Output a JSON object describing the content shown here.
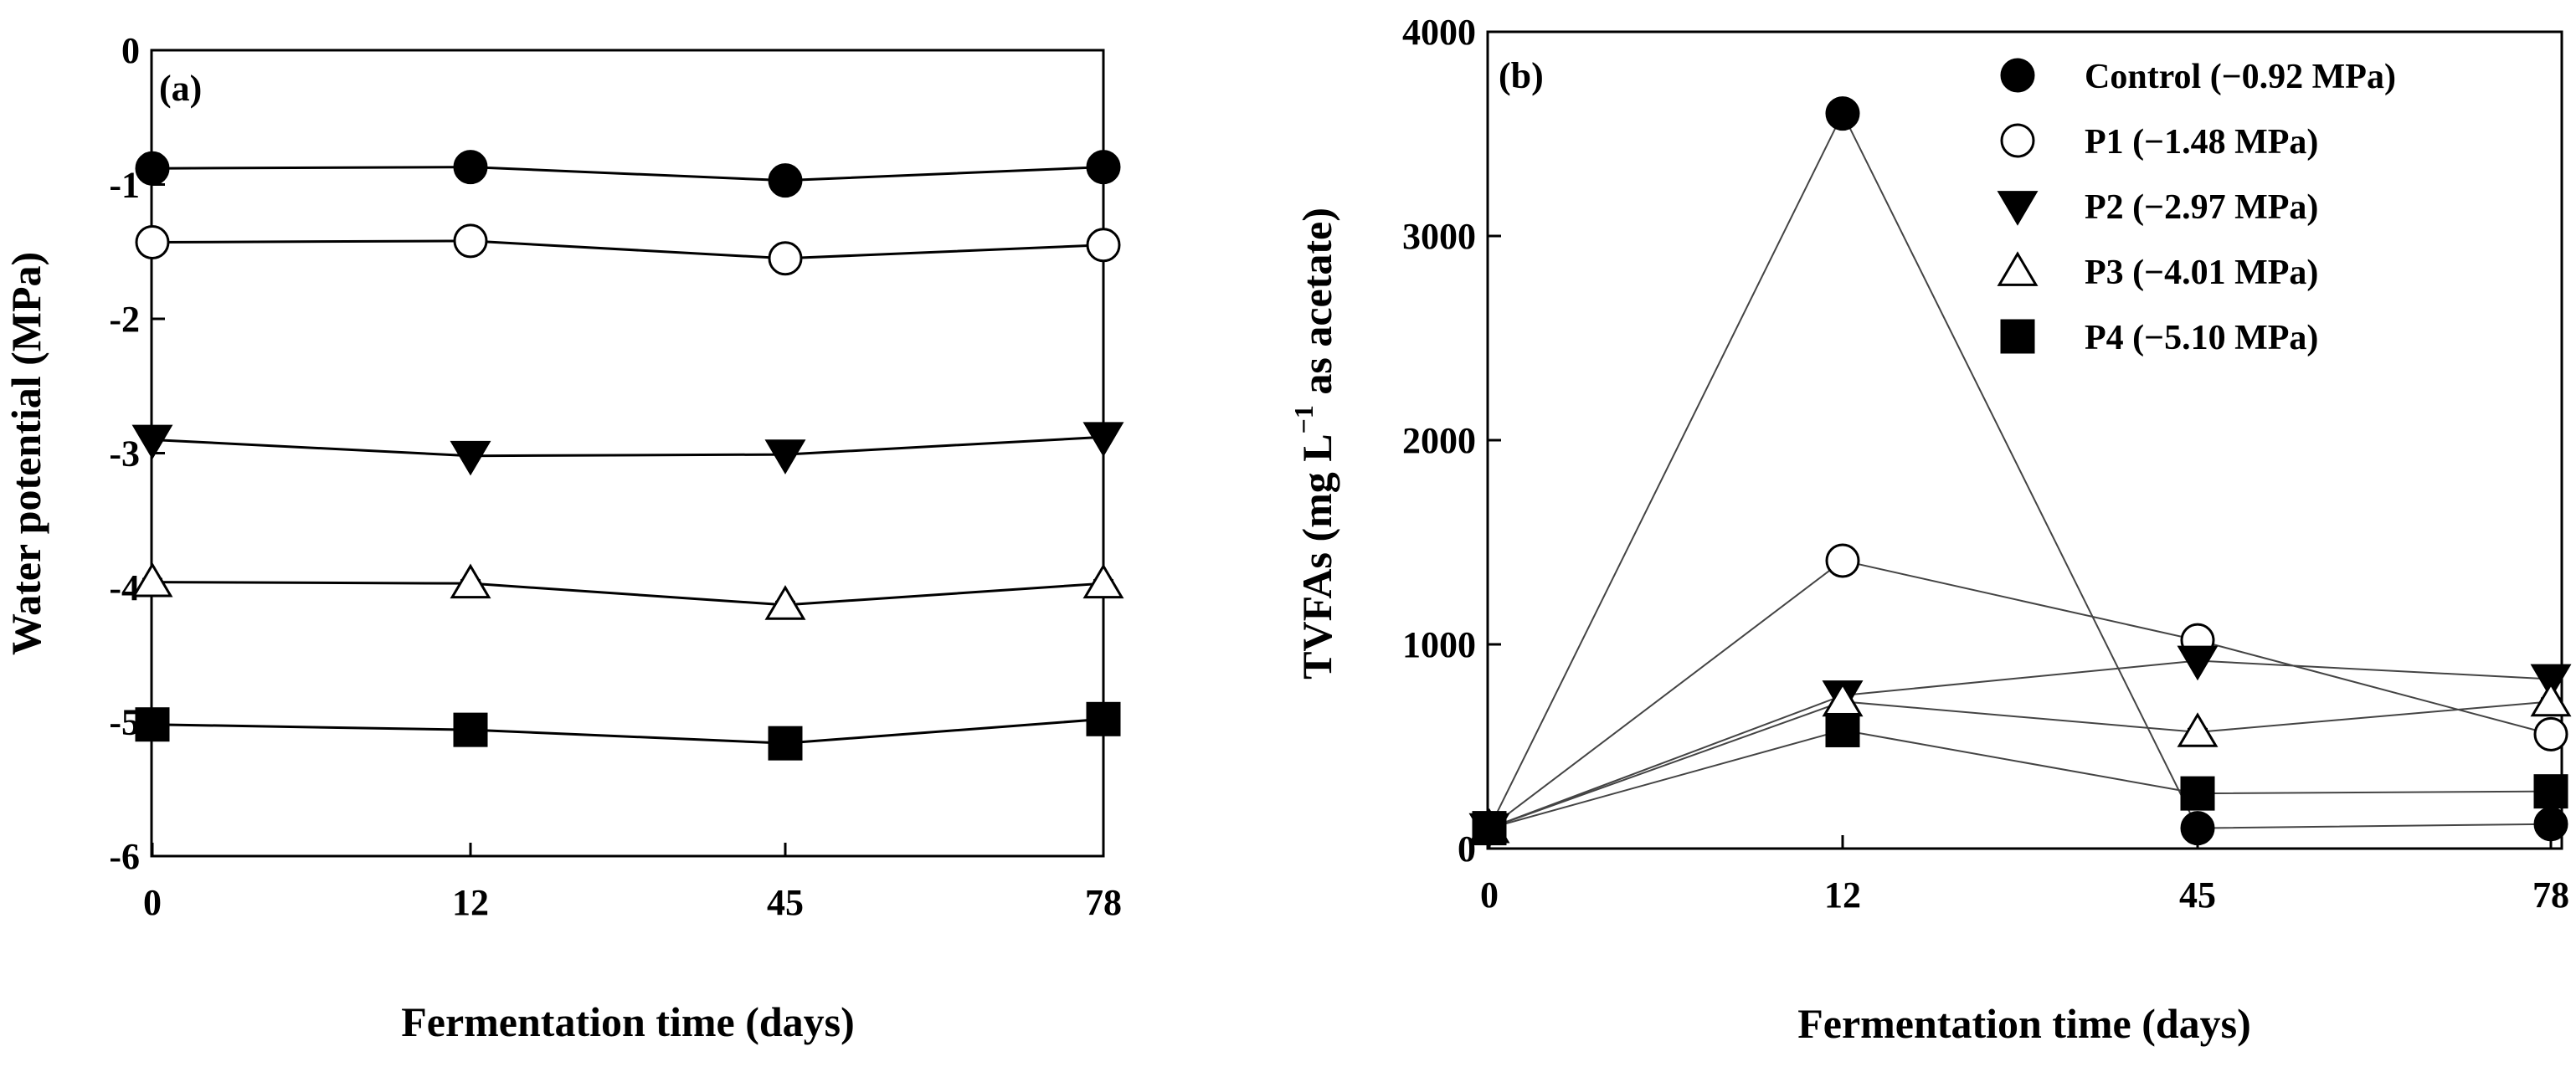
{
  "chart_data": [
    {
      "type": "line",
      "panel_label": "(a)",
      "xlabel": "Fermentation time (days)",
      "ylabel": "Water potential (MPa)",
      "categories": [
        "0",
        "12",
        "45",
        "78"
      ],
      "ylim": [
        -6,
        0
      ],
      "yticks": [
        "0",
        "-1",
        "-2",
        "-3",
        "-4",
        "-5",
        "-6"
      ],
      "series": [
        {
          "name": "Control",
          "marker": "filled-circle",
          "values": [
            -0.88,
            -0.87,
            -0.97,
            -0.87
          ]
        },
        {
          "name": "P1",
          "marker": "open-circle",
          "values": [
            -1.43,
            -1.42,
            -1.55,
            -1.45
          ]
        },
        {
          "name": "P2",
          "marker": "filled-triangle-down",
          "values": [
            -2.9,
            -3.02,
            -3.01,
            -2.88
          ]
        },
        {
          "name": "P3",
          "marker": "open-triangle-up",
          "values": [
            -3.96,
            -3.97,
            -4.13,
            -3.97
          ]
        },
        {
          "name": "P4",
          "marker": "filled-square",
          "values": [
            -5.02,
            -5.06,
            -5.16,
            -4.98
          ]
        }
      ]
    },
    {
      "type": "line",
      "panel_label": "(b)",
      "xlabel": "Fermentation time (days)",
      "ylabel_main": "TVFAs (mg L",
      "ylabel_sup": "−1",
      "ylabel_tail": " as acetate)",
      "categories": [
        "0",
        "12",
        "45",
        "78"
      ],
      "ylim": [
        0,
        4000
      ],
      "yticks": [
        "0",
        "1000",
        "2000",
        "3000",
        "4000"
      ],
      "legend_position": "top-right",
      "series": [
        {
          "name": "Control",
          "legend": "Control (−0.92 MPa)",
          "marker": "filled-circle",
          "values": [
            100,
            3600,
            100,
            120
          ]
        },
        {
          "name": "P1",
          "legend": "P1 (−1.48 MPa)",
          "marker": "open-circle",
          "values": [
            100,
            1410,
            1020,
            560
          ]
        },
        {
          "name": "P2",
          "legend": "P2 (−2.97 MPa)",
          "marker": "filled-triangle-down",
          "values": [
            100,
            750,
            920,
            830
          ]
        },
        {
          "name": "P3",
          "legend": "P3 (−4.01 MPa)",
          "marker": "open-triangle-up",
          "values": [
            100,
            720,
            570,
            720
          ]
        },
        {
          "name": "P4",
          "legend": "P4 (−5.10 MPa)",
          "marker": "filled-square",
          "values": [
            100,
            580,
            270,
            280
          ]
        }
      ]
    }
  ]
}
